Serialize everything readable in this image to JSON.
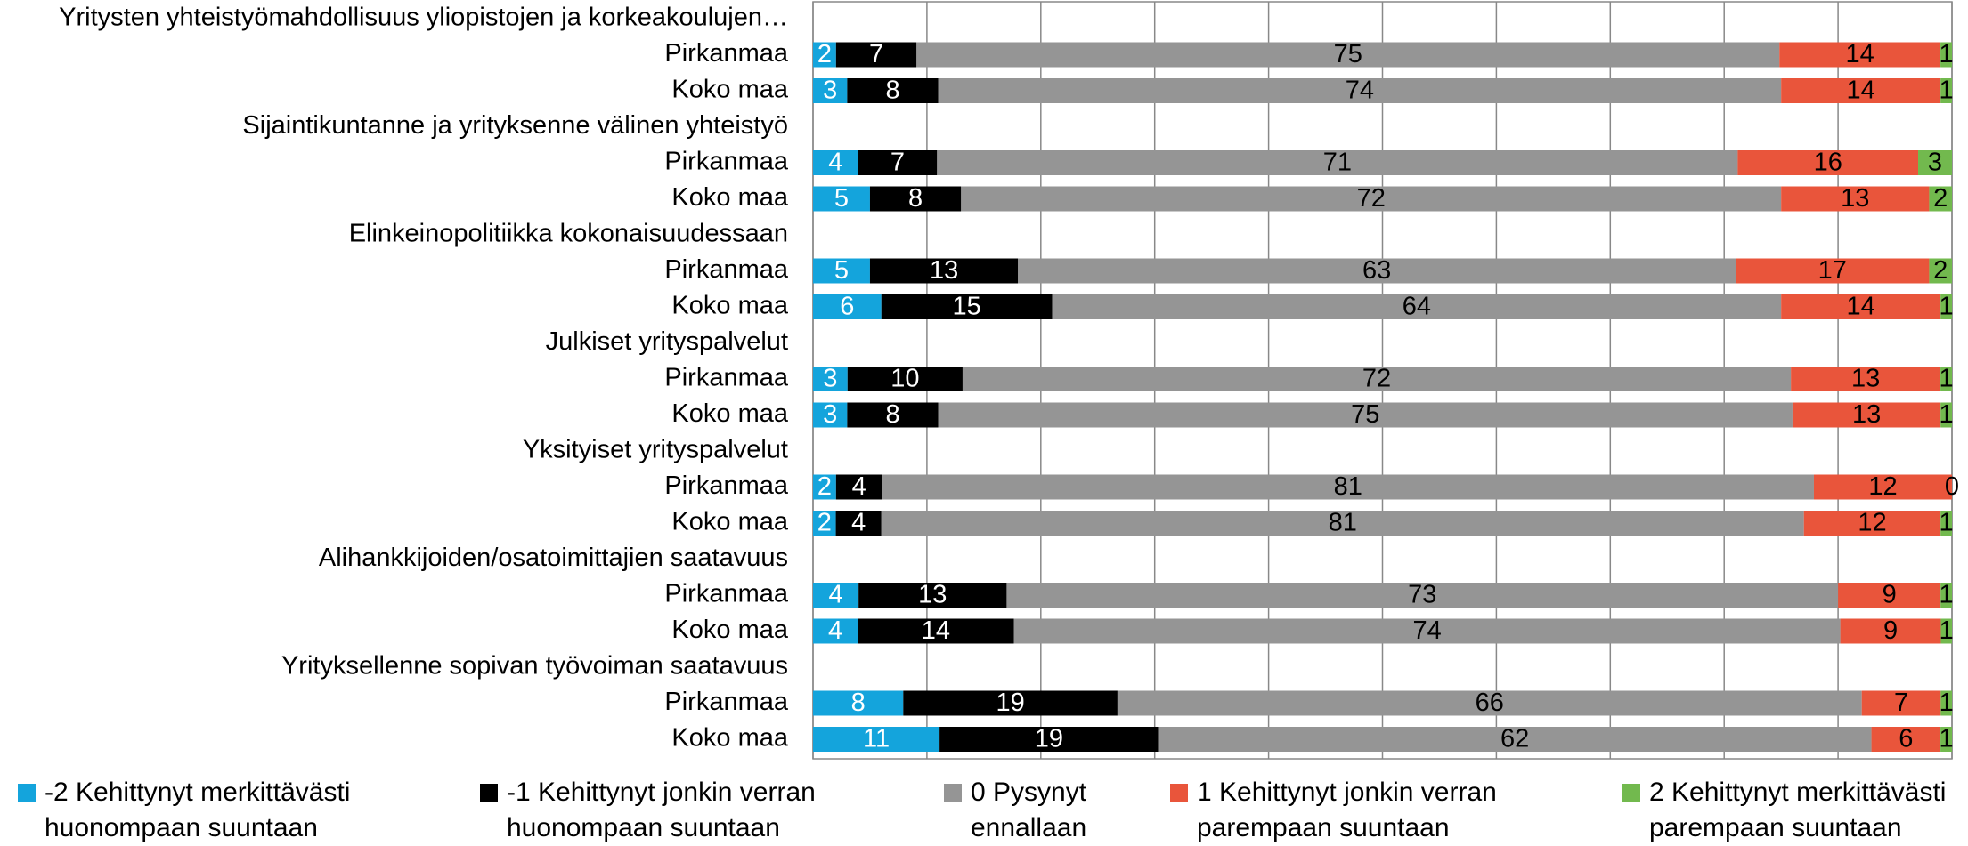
{
  "chart_data": {
    "type": "bar",
    "orientation": "horizontal",
    "stacking": "percent",
    "categories": [
      "Yritysten yhteistyömahdollisuus yliopistojen ja korkeakoulujen…",
      "Pirkanmaa",
      "Koko maa",
      "Sijaintikuntanne ja yrityksenne välinen yhteistyö",
      "Pirkanmaa",
      "Koko maa",
      "Elinkeinopolitiikka kokonaisuudessaan",
      "Pirkanmaa",
      "Koko maa",
      "Julkiset yrityspalvelut",
      "Pirkanmaa",
      "Koko maa",
      "Yksityiset yrityspalvelut",
      "Pirkanmaa",
      "Koko maa",
      "Alihankkijoiden/osatoimittajien saatavuus",
      "Pirkanmaa",
      "Koko maa",
      "Yrityksellenne sopivan työvoiman saatavuus",
      "Pirkanmaa",
      "Koko maa"
    ],
    "series": [
      {
        "name": "-2 Kehittynyt merkittävästi huonompaan suuntaan",
        "color": "#14a4dc",
        "label_color": "#ffffff",
        "values": [
          null,
          2,
          3,
          null,
          4,
          5,
          null,
          5,
          6,
          null,
          3,
          3,
          null,
          2,
          2,
          null,
          4,
          4,
          null,
          8,
          11
        ]
      },
      {
        "name": "-1 Kehittynyt jonkin verran huonompaan suuntaan",
        "color": "#000000",
        "label_color": "#ffffff",
        "values": [
          null,
          7,
          8,
          null,
          7,
          8,
          null,
          13,
          15,
          null,
          10,
          8,
          null,
          4,
          4,
          null,
          13,
          14,
          null,
          19,
          19
        ]
      },
      {
        "name": "0  Pysynyt ennallaan",
        "color": "#959595",
        "label_color": "#000000",
        "values": [
          null,
          75,
          74,
          null,
          71,
          72,
          null,
          63,
          64,
          null,
          72,
          75,
          null,
          81,
          81,
          null,
          73,
          74,
          null,
          66,
          62
        ]
      },
      {
        "name": "1  Kehittynyt jonkin verran parempaan suuntaan",
        "color": "#e9553b",
        "label_color": "#000000",
        "values": [
          null,
          14,
          14,
          null,
          16,
          13,
          null,
          17,
          14,
          null,
          13,
          13,
          null,
          12,
          12,
          null,
          9,
          9,
          null,
          7,
          6
        ]
      },
      {
        "name": "2  Kehittynyt merkittävästi parempaan suuntaan",
        "color": "#72b94e",
        "label_color": "#000000",
        "values": [
          null,
          1,
          1,
          null,
          3,
          2,
          null,
          2,
          1,
          null,
          1,
          1,
          null,
          0,
          1,
          null,
          1,
          1,
          null,
          1,
          1
        ]
      }
    ],
    "xlim": [
      0,
      100
    ],
    "xticks": [
      0,
      10,
      20,
      30,
      40,
      50,
      60,
      70,
      80,
      90,
      100
    ],
    "grid": true,
    "legend": "bottom"
  }
}
